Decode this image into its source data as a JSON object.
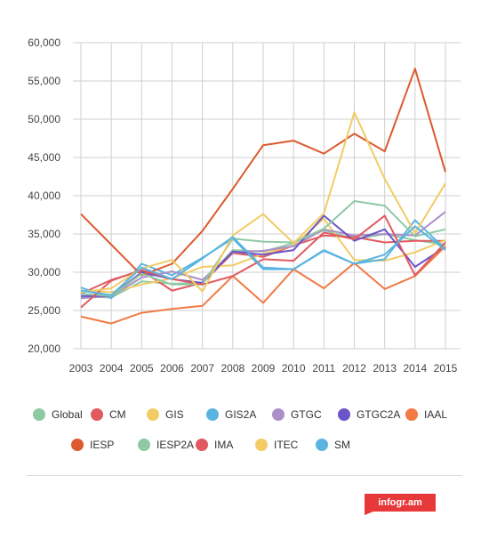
{
  "chart_data": {
    "type": "line",
    "title": "",
    "xlabel": "",
    "ylabel": "",
    "x": [
      "2003",
      "2004",
      "2005",
      "2006",
      "2007",
      "2008",
      "2009",
      "2010",
      "2011",
      "2012",
      "2013",
      "2014",
      "2015"
    ],
    "y_ticks": [
      "20,000",
      "25,000",
      "30,000",
      "35,000",
      "40,000",
      "45,000",
      "50,000",
      "55,000",
      "60,000"
    ],
    "ylim": [
      20000,
      60000
    ],
    "grid": true,
    "legend_position": "bottom",
    "series": [
      {
        "name": "Global",
        "color": "#8fc9a3",
        "values": [
          26800,
          26700,
          28800,
          28500,
          28600,
          32900,
          32700,
          33800,
          35500,
          34300,
          35000,
          34200,
          33600
        ]
      },
      {
        "name": "CM",
        "color": "#e05a5f",
        "values": [
          27200,
          29000,
          30200,
          27600,
          28600,
          32500,
          32000,
          33500,
          34800,
          34600,
          33900,
          34100,
          34100
        ]
      },
      {
        "name": "GIS",
        "color": "#f2cb65",
        "values": [
          27600,
          27400,
          28400,
          29200,
          30700,
          30900,
          32400,
          33500,
          37000,
          31600,
          31500,
          32600,
          34200
        ]
      },
      {
        "name": "GIS2A",
        "color": "#5ab4e0",
        "values": [
          28000,
          26600,
          31100,
          29600,
          31900,
          34400,
          30400,
          30400,
          32900,
          31100,
          31700,
          36800,
          33000
        ]
      },
      {
        "name": "GTGC",
        "color": "#ab8fc9",
        "values": [
          26600,
          26900,
          29300,
          30100,
          29000,
          32600,
          32800,
          33400,
          35600,
          34800,
          35000,
          34800,
          37900
        ]
      },
      {
        "name": "GTGC2A",
        "color": "#6b55c9",
        "values": [
          26900,
          26900,
          30000,
          29100,
          28600,
          32700,
          32300,
          32900,
          37400,
          34100,
          35600,
          30700,
          33300
        ]
      },
      {
        "name": "IAAL",
        "color": "#f17a45",
        "values": [
          24200,
          23300,
          24700,
          25200,
          25600,
          29500,
          26000,
          30400,
          27900,
          31200,
          27800,
          29500,
          33400
        ]
      },
      {
        "name": "IESP",
        "color": "#dc5a2e",
        "values": [
          37600,
          33600,
          29600,
          31100,
          35400,
          40900,
          46600,
          47200,
          45500,
          48100,
          45800,
          56600,
          43100
        ]
      },
      {
        "name": "IESP2A",
        "color": "#8fc9a3",
        "values": [
          27200,
          26900,
          29800,
          28400,
          28400,
          34400,
          34000,
          33900,
          35700,
          39300,
          38700,
          34700,
          35600
        ]
      },
      {
        "name": "IMA",
        "color": "#e05a5f",
        "values": [
          25400,
          28900,
          30300,
          29100,
          28400,
          29500,
          31700,
          31500,
          35200,
          34300,
          37400,
          29600,
          33900
        ]
      },
      {
        "name": "ITEC",
        "color": "#f2cb65",
        "values": [
          27400,
          27900,
          30500,
          31600,
          27500,
          34800,
          37600,
          33800,
          37700,
          50900,
          42200,
          35100,
          41600
        ]
      },
      {
        "name": "SM",
        "color": "#5ab4e0",
        "values": [
          27600,
          27000,
          30600,
          29100,
          31800,
          34600,
          30600,
          30400,
          32800,
          31100,
          32300,
          36000,
          32900
        ]
      }
    ]
  },
  "footer": {
    "brand": "infogr.am",
    "brand_color": "#e8393a"
  }
}
